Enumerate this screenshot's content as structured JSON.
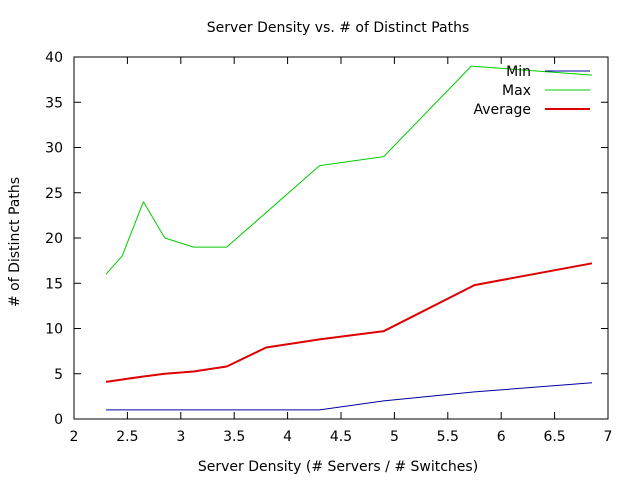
{
  "chart_data": {
    "type": "line",
    "title": "Server Density vs. # of Distinct Paths",
    "xlabel": "Server Density (# Servers / # Switches)",
    "ylabel": "# of Distinct Paths",
    "xlim": [
      2,
      7
    ],
    "ylim": [
      0,
      40
    ],
    "xticks": [
      2,
      2.5,
      3,
      3.5,
      4,
      4.5,
      5,
      5.5,
      6,
      6.5,
      7
    ],
    "xtick_labels": [
      "2",
      "2.5",
      "3",
      "3.5",
      "4",
      "4.5",
      "5",
      "5.5",
      "6",
      "6.5",
      "7"
    ],
    "yticks": [
      0,
      5,
      10,
      15,
      20,
      25,
      30,
      35,
      40
    ],
    "ytick_labels": [
      "0",
      "5",
      "10",
      "15",
      "20",
      "25",
      "30",
      "35",
      "40"
    ],
    "grid": false,
    "legend_position": "top-right",
    "series": [
      {
        "name": "Min",
        "color": "#0000a0",
        "points": [
          [
            2.3,
            1
          ],
          [
            2.47,
            1
          ],
          [
            2.65,
            1
          ],
          [
            2.85,
            1
          ],
          [
            3.12,
            1
          ],
          [
            3.43,
            1
          ],
          [
            3.8,
            1
          ],
          [
            4.3,
            1
          ],
          [
            4.9,
            2
          ],
          [
            5.75,
            3
          ],
          [
            6.85,
            4
          ]
        ]
      },
      {
        "name": "Max",
        "color": "#00cc00",
        "points": [
          [
            2.3,
            16
          ],
          [
            2.45,
            18
          ],
          [
            2.65,
            24
          ],
          [
            2.85,
            20
          ],
          [
            3.12,
            19
          ],
          [
            3.43,
            19
          ],
          [
            4.3,
            28
          ],
          [
            4.9,
            29
          ],
          [
            5.72,
            39
          ],
          [
            6.85,
            38
          ]
        ]
      },
      {
        "name": "Average",
        "color": "#dd0000",
        "points": [
          [
            2.3,
            4.1
          ],
          [
            2.47,
            4.4
          ],
          [
            2.65,
            4.7
          ],
          [
            2.85,
            5.0
          ],
          [
            3.12,
            5.25
          ],
          [
            3.43,
            5.8
          ],
          [
            3.8,
            7.9
          ],
          [
            4.3,
            8.8
          ],
          [
            4.9,
            9.7
          ],
          [
            5.75,
            14.8
          ],
          [
            6.85,
            17.2
          ]
        ]
      }
    ]
  }
}
